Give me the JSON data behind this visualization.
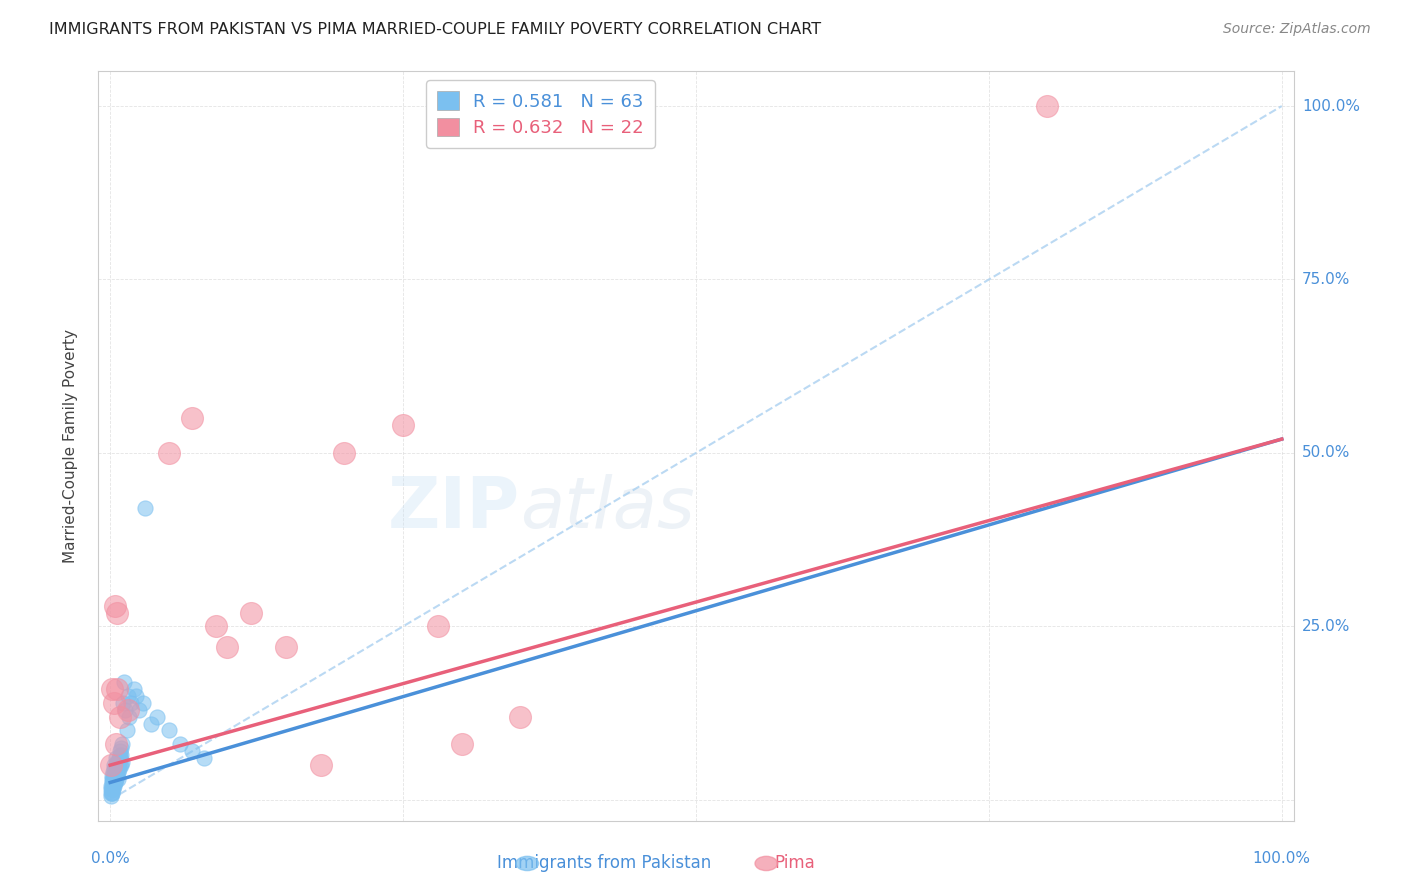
{
  "title": "IMMIGRANTS FROM PAKISTAN VS PIMA MARRIED-COUPLE FAMILY POVERTY CORRELATION CHART",
  "source": "Source: ZipAtlas.com",
  "ylabel": "Married-Couple Family Poverty",
  "legend_r1": "R = 0.581",
  "legend_n1": "N = 63",
  "legend_r2": "R = 0.632",
  "legend_n2": "N = 22",
  "blue_color": "#7bc0f0",
  "pink_color": "#f28fa0",
  "blue_line_color": "#4a90d9",
  "pink_line_color": "#e8607a",
  "blue_dashed_color": "#aad0f0",
  "label_color": "#4a90d9",
  "title_color": "#222222",
  "source_color": "#888888",
  "grid_color": "#dddddd",
  "pak_x": [
    0.05,
    0.08,
    0.1,
    0.1,
    0.12,
    0.12,
    0.15,
    0.15,
    0.18,
    0.2,
    0.2,
    0.22,
    0.25,
    0.25,
    0.28,
    0.3,
    0.3,
    0.32,
    0.35,
    0.38,
    0.4,
    0.42,
    0.45,
    0.48,
    0.5,
    0.52,
    0.55,
    0.58,
    0.6,
    0.62,
    0.65,
    0.68,
    0.7,
    0.72,
    0.75,
    0.78,
    0.8,
    0.82,
    0.85,
    0.88,
    0.9,
    0.92,
    0.95,
    0.98,
    1.0,
    1.1,
    1.2,
    1.3,
    1.4,
    1.5,
    1.6,
    1.8,
    2.0,
    2.2,
    2.5,
    2.8,
    3.0,
    3.5,
    4.0,
    5.0,
    6.0,
    7.0,
    8.0
  ],
  "pak_y": [
    1.0,
    1.5,
    2.0,
    0.5,
    3.0,
    1.0,
    2.5,
    1.5,
    2.0,
    3.5,
    1.0,
    2.0,
    4.0,
    1.5,
    3.0,
    5.0,
    2.0,
    3.5,
    4.5,
    2.5,
    3.0,
    4.0,
    2.5,
    5.0,
    6.0,
    3.0,
    4.5,
    3.5,
    5.5,
    4.0,
    3.0,
    5.0,
    4.0,
    6.0,
    5.5,
    4.5,
    6.5,
    5.0,
    7.0,
    6.0,
    5.0,
    6.5,
    7.5,
    5.5,
    8.0,
    14.0,
    17.0,
    13.0,
    10.0,
    15.0,
    12.0,
    14.0,
    16.0,
    15.0,
    13.0,
    14.0,
    42.0,
    11.0,
    12.0,
    10.0,
    8.0,
    7.0,
    6.0
  ],
  "pima_x": [
    0.1,
    0.2,
    0.3,
    0.4,
    0.5,
    0.55,
    0.6,
    0.8,
    1.5,
    5.0,
    7.0,
    9.0,
    10.0,
    12.0,
    15.0,
    18.0,
    20.0,
    25.0,
    28.0,
    30.0,
    35.0,
    80.0
  ],
  "pima_y": [
    5.0,
    16.0,
    14.0,
    28.0,
    8.0,
    27.0,
    16.0,
    12.0,
    13.0,
    50.0,
    55.0,
    25.0,
    22.0,
    27.0,
    22.0,
    5.0,
    50.0,
    54.0,
    25.0,
    8.0,
    12.0,
    100.0
  ],
  "xlim": [
    0,
    100
  ],
  "ylim": [
    0,
    100
  ],
  "pak_reg_x0": 0,
  "pak_reg_y0": 2.5,
  "pak_reg_x1": 100,
  "pak_reg_y1": 52.0,
  "pima_reg_x0": 0,
  "pima_reg_y0": 5.0,
  "pima_reg_x1": 100,
  "pima_reg_y1": 52.0,
  "dashed_x0": 0,
  "dashed_y0": 0,
  "dashed_x1": 100,
  "dashed_y1": 100
}
